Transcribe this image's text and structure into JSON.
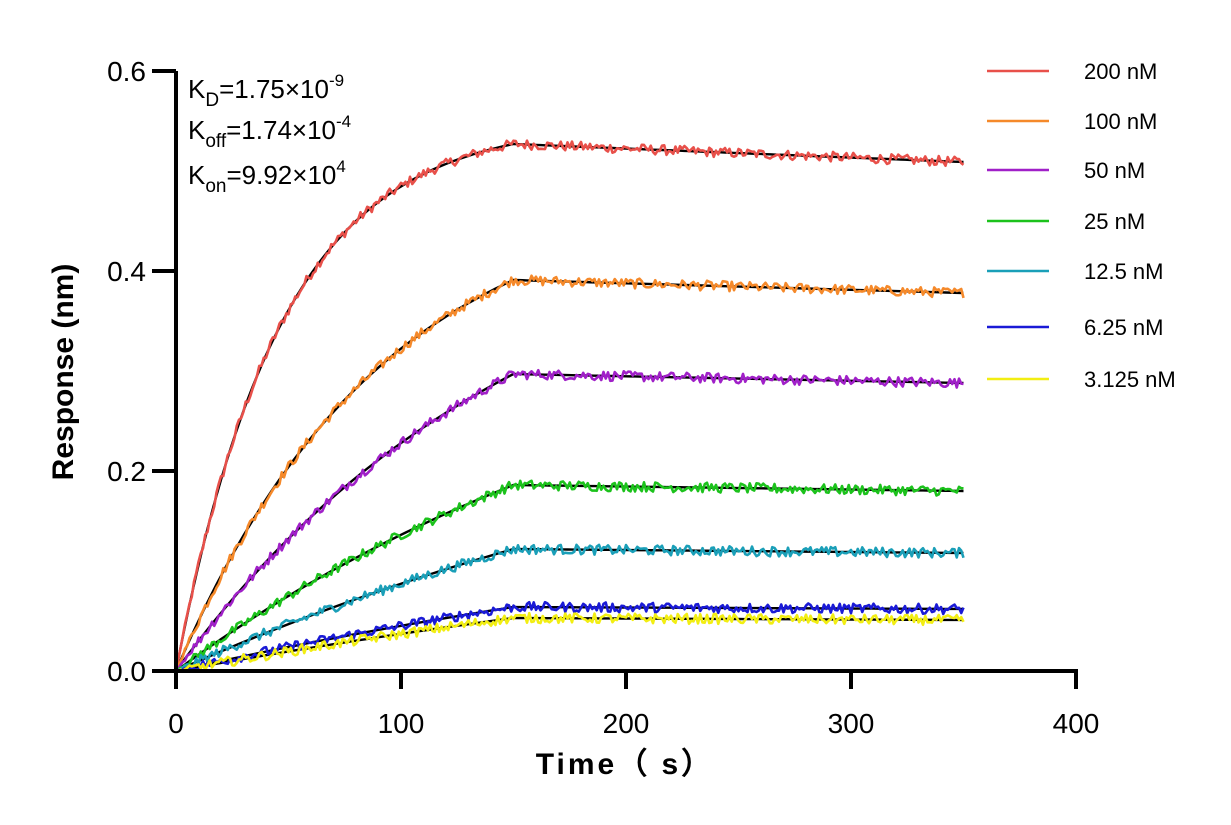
{
  "chart_data": {
    "type": "line",
    "xlabel": "Time（ s）",
    "ylabel": "Response (nm)",
    "xlim": [
      0,
      400
    ],
    "ylim": [
      0,
      0.6
    ],
    "xticks": [
      "0",
      "100",
      "200",
      "300",
      "400"
    ],
    "yticks": [
      "0.0",
      "0.2",
      "0.4",
      "0.6"
    ],
    "grid": false,
    "legend_position": "top-right",
    "association_end_s": 150,
    "end_time_s": 350,
    "annotations": [
      {
        "main": "K",
        "sub": "D",
        "value": "=1.75×10",
        "exp": "-9"
      },
      {
        "main": "K",
        "sub": "off",
        "value": "=1.74×10",
        "exp": "-4"
      },
      {
        "main": "K",
        "sub": "on",
        "value": "=9.92×10",
        "exp": "4"
      }
    ],
    "fit_color": "#000000",
    "series": [
      {
        "name": "200 nM",
        "color": "#e8504a",
        "plateau": 0.527,
        "end": 0.509,
        "k_obs": 0.0214
      },
      {
        "name": "100 nM",
        "color": "#f5892a",
        "plateau": 0.391,
        "end": 0.378,
        "k_obs": 0.0109
      },
      {
        "name": "50 nM",
        "color": "#a020c8",
        "plateau": 0.297,
        "end": 0.288,
        "k_obs": 0.0065
      },
      {
        "name": "25 nM",
        "color": "#1cc21c",
        "plateau": 0.186,
        "end": 0.18,
        "k_obs": 0.0041
      },
      {
        "name": "12.5 nM",
        "color": "#1a9fb8",
        "plateau": 0.122,
        "end": 0.118,
        "k_obs": 0.003
      },
      {
        "name": "6.25 nM",
        "color": "#1a1ad6",
        "plateau": 0.064,
        "end": 0.062,
        "k_obs": 0.0024
      },
      {
        "name": "3.125 nM",
        "color": "#f2ee12",
        "plateau": 0.053,
        "end": 0.051,
        "k_obs": 0.0021
      }
    ]
  }
}
